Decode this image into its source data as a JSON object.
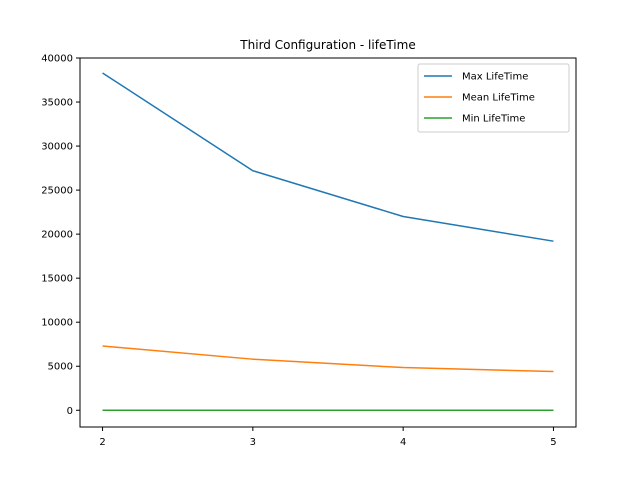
{
  "chart_data": {
    "type": "line",
    "title": "Third Configuration - lifeTime",
    "xlabel": "",
    "ylabel": "",
    "x": [
      2,
      3,
      4,
      5
    ],
    "xticks": [
      "2",
      "3",
      "4",
      "5"
    ],
    "yticks": [
      "0",
      "5000",
      "10000",
      "15000",
      "20000",
      "25000",
      "30000",
      "35000",
      "40000"
    ],
    "xlim": [
      1.85,
      5.15
    ],
    "ylim": [
      -1900,
      40000
    ],
    "grid": false,
    "legend_position": "top-right",
    "series": [
      {
        "name": "Max LifeTime",
        "color": "#1f77b4",
        "values": [
          38300,
          27200,
          22000,
          19200
        ]
      },
      {
        "name": "Mean LifeTime",
        "color": "#ff7f0e",
        "values": [
          7300,
          5800,
          4850,
          4400
        ]
      },
      {
        "name": "Min LifeTime",
        "color": "#2ca02c",
        "values": [
          5,
          5,
          5,
          5
        ]
      }
    ]
  }
}
